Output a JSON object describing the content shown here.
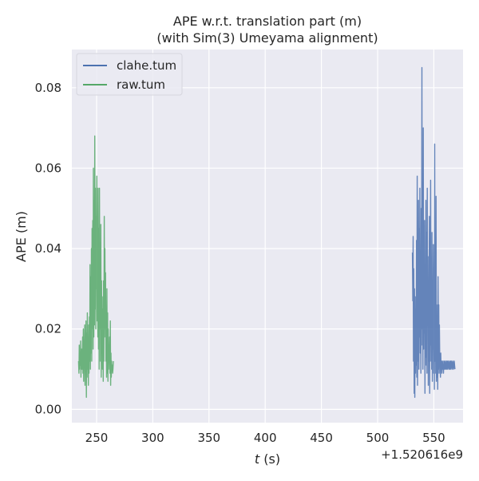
{
  "chart_data": {
    "type": "line",
    "title_line1": "APE w.r.t. translation part (m)",
    "title_line2": "(with Sim(3) Umeyama alignment)",
    "xlabel_italic": "t",
    "xlabel_unit": " (s)",
    "ylabel": "APE (m)",
    "x_offset_label": "+1.520616e9",
    "xlim": [
      228,
      576
    ],
    "ylim": [
      -0.0033,
      0.0895
    ],
    "xticks": [
      250,
      300,
      350,
      400,
      450,
      500,
      550
    ],
    "xtick_labels": [
      "250",
      "300",
      "350",
      "400",
      "450",
      "500",
      "550"
    ],
    "yticks": [
      0.0,
      0.02,
      0.04,
      0.06,
      0.08
    ],
    "ytick_labels": [
      "0.00",
      "0.02",
      "0.04",
      "0.06",
      "0.08"
    ],
    "grid": true,
    "legend_position": "top-left",
    "series": [
      {
        "name": "clahe.tum",
        "color": "#4c72b0",
        "x": [
          531.0,
          531.3,
          531.6,
          531.9,
          532.2,
          532.5,
          532.8,
          533.1,
          533.4,
          533.7,
          534.0,
          534.3,
          534.6,
          534.9,
          535.2,
          535.5,
          535.8,
          536.1,
          536.4,
          536.7,
          537.0,
          537.3,
          537.6,
          537.9,
          538.2,
          538.5,
          538.8,
          539.1,
          539.4,
          539.7,
          540.0,
          540.3,
          540.6,
          540.9,
          541.2,
          541.5,
          541.8,
          542.1,
          542.4,
          542.7,
          543.0,
          543.3,
          543.6,
          543.9,
          544.2,
          544.5,
          544.8,
          545.1,
          545.4,
          545.7,
          546.0,
          546.3,
          546.6,
          546.9,
          547.2,
          547.5,
          547.8,
          548.1,
          548.4,
          548.7,
          549.0,
          549.3,
          549.6,
          549.9,
          550.2,
          550.5,
          550.8,
          551.1,
          551.4,
          551.7,
          552.0,
          552.3,
          552.6,
          552.9,
          553.2,
          553.5,
          553.8,
          554.1,
          554.4,
          554.7,
          555.0,
          555.3,
          555.6,
          555.9,
          556.2,
          556.5,
          556.8,
          557.1,
          557.4,
          557.7,
          558.0,
          558.3,
          558.6,
          558.9,
          559.2,
          559.5,
          559.8,
          560.1,
          560.4,
          560.7,
          561.0,
          561.3,
          561.6,
          561.9,
          562.2,
          562.5,
          562.8,
          563.1,
          563.4,
          563.7,
          564.0,
          564.3,
          564.6,
          564.9,
          565.2,
          565.5,
          565.8,
          566.1,
          566.4,
          566.7,
          567.0,
          567.3,
          567.6,
          567.9,
          568.2,
          568.5,
          568.8
        ],
        "y": [
          0.039,
          0.027,
          0.043,
          0.012,
          0.035,
          0.004,
          0.03,
          0.003,
          0.028,
          0.009,
          0.025,
          0.011,
          0.042,
          0.008,
          0.058,
          0.006,
          0.038,
          0.012,
          0.052,
          0.01,
          0.045,
          0.018,
          0.055,
          0.014,
          0.033,
          0.009,
          0.05,
          0.016,
          0.085,
          0.02,
          0.04,
          0.01,
          0.07,
          0.015,
          0.036,
          0.019,
          0.047,
          0.004,
          0.032,
          0.013,
          0.052,
          0.011,
          0.044,
          0.009,
          0.055,
          0.021,
          0.038,
          0.006,
          0.029,
          0.012,
          0.048,
          0.004,
          0.033,
          0.016,
          0.057,
          0.012,
          0.031,
          0.01,
          0.044,
          0.007,
          0.026,
          0.015,
          0.041,
          0.009,
          0.035,
          0.005,
          0.066,
          0.012,
          0.034,
          0.009,
          0.053,
          0.007,
          0.026,
          0.008,
          0.018,
          0.005,
          0.033,
          0.01,
          0.026,
          0.009,
          0.021,
          0.011,
          0.012,
          0.008,
          0.014,
          0.01,
          0.012,
          0.009,
          0.011,
          0.012,
          0.01,
          0.011,
          0.009,
          0.012,
          0.011,
          0.01,
          0.012,
          0.011,
          0.01,
          0.011,
          0.012,
          0.01,
          0.011,
          0.012,
          0.01,
          0.011,
          0.012,
          0.011,
          0.01,
          0.011,
          0.012,
          0.01,
          0.011,
          0.012,
          0.01,
          0.011,
          0.012,
          0.011,
          0.01,
          0.011,
          0.012,
          0.011,
          0.01,
          0.011,
          0.012,
          0.011,
          0.01
        ]
      },
      {
        "name": "raw.tum",
        "color": "#55a868",
        "x": [
          234.0,
          234.3,
          234.6,
          234.9,
          235.2,
          235.5,
          235.8,
          236.1,
          236.4,
          236.7,
          237.0,
          237.3,
          237.6,
          237.9,
          238.2,
          238.5,
          238.8,
          239.1,
          239.4,
          239.7,
          240.0,
          240.3,
          240.6,
          240.9,
          241.2,
          241.5,
          241.8,
          242.1,
          242.4,
          242.7,
          243.0,
          243.3,
          243.6,
          243.9,
          244.2,
          244.5,
          244.8,
          245.1,
          245.4,
          245.7,
          246.0,
          246.3,
          246.6,
          246.9,
          247.2,
          247.5,
          247.8,
          248.1,
          248.4,
          248.7,
          249.0,
          249.3,
          249.6,
          249.9,
          250.2,
          250.5,
          250.8,
          251.1,
          251.4,
          251.7,
          252.0,
          252.3,
          252.6,
          252.9,
          253.2,
          253.5,
          253.8,
          254.1,
          254.4,
          254.7,
          255.0,
          255.3,
          255.6,
          255.9,
          256.2,
          256.5,
          256.8,
          257.1,
          257.4,
          257.7,
          258.0,
          258.3,
          258.6,
          258.9,
          259.2,
          259.5,
          259.8,
          260.1,
          260.4,
          260.7,
          261.0,
          261.3,
          261.6,
          261.9,
          262.2,
          262.5,
          262.8,
          263.1,
          263.4,
          263.7,
          264.0,
          264.3,
          264.6,
          264.9
        ],
        "y": [
          0.012,
          0.009,
          0.016,
          0.01,
          0.014,
          0.011,
          0.017,
          0.008,
          0.013,
          0.015,
          0.01,
          0.012,
          0.018,
          0.009,
          0.02,
          0.007,
          0.014,
          0.011,
          0.021,
          0.006,
          0.016,
          0.012,
          0.022,
          0.003,
          0.019,
          0.008,
          0.024,
          0.01,
          0.018,
          0.006,
          0.021,
          0.009,
          0.023,
          0.012,
          0.036,
          0.01,
          0.033,
          0.014,
          0.04,
          0.012,
          0.045,
          0.02,
          0.047,
          0.015,
          0.06,
          0.018,
          0.052,
          0.021,
          0.068,
          0.025,
          0.055,
          0.02,
          0.048,
          0.03,
          0.058,
          0.022,
          0.035,
          0.018,
          0.055,
          0.015,
          0.045,
          0.01,
          0.055,
          0.02,
          0.04,
          0.012,
          0.046,
          0.008,
          0.032,
          0.015,
          0.028,
          0.01,
          0.025,
          0.007,
          0.032,
          0.012,
          0.048,
          0.018,
          0.04,
          0.02,
          0.034,
          0.012,
          0.022,
          0.008,
          0.03,
          0.009,
          0.024,
          0.007,
          0.02,
          0.01,
          0.015,
          0.012,
          0.018,
          0.009,
          0.022,
          0.006,
          0.014,
          0.008,
          0.012,
          0.01,
          0.011,
          0.009,
          0.01,
          0.012
        ]
      }
    ]
  }
}
